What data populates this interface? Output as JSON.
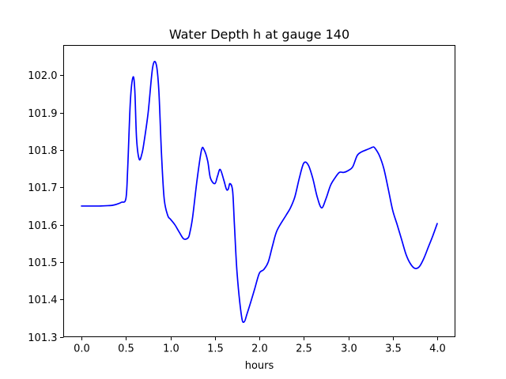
{
  "chart_data": {
    "type": "line",
    "title": "Water Depth h at gauge 140",
    "xlabel": "hours",
    "ylabel": "",
    "xlim": [
      -0.2,
      4.2
    ],
    "ylim": [
      101.3,
      102.08
    ],
    "xticks": [
      0.0,
      0.5,
      1.0,
      1.5,
      2.0,
      2.5,
      3.0,
      3.5,
      4.0
    ],
    "xtick_labels": [
      "0.0",
      "0.5",
      "1.0",
      "1.5",
      "2.0",
      "2.5",
      "3.0",
      "3.5",
      "4.0"
    ],
    "yticks": [
      101.3,
      101.4,
      101.5,
      101.6,
      101.7,
      101.8,
      101.9,
      102.0
    ],
    "ytick_labels": [
      "101.3",
      "101.4",
      "101.5",
      "101.6",
      "101.7",
      "101.8",
      "101.9",
      "102.0"
    ],
    "grid": false,
    "legend": "none",
    "series": [
      {
        "color": "#0000ff",
        "x": [
          0.0,
          0.1,
          0.2,
          0.3,
          0.35,
          0.4,
          0.45,
          0.5,
          0.52,
          0.55,
          0.58,
          0.6,
          0.62,
          0.65,
          0.68,
          0.7,
          0.75,
          0.8,
          0.84,
          0.87,
          0.9,
          0.93,
          0.97,
          1.0,
          1.05,
          1.1,
          1.15,
          1.2,
          1.22,
          1.25,
          1.3,
          1.35,
          1.38,
          1.42,
          1.45,
          1.5,
          1.53,
          1.56,
          1.6,
          1.63,
          1.65,
          1.67,
          1.7,
          1.72,
          1.75,
          1.8,
          1.83,
          1.86,
          1.9,
          1.95,
          2.0,
          2.05,
          2.1,
          2.15,
          2.2,
          2.3,
          2.35,
          2.4,
          2.45,
          2.5,
          2.55,
          2.6,
          2.65,
          2.7,
          2.75,
          2.8,
          2.85,
          2.9,
          2.95,
          3.0,
          3.05,
          3.1,
          3.15,
          3.2,
          3.25,
          3.28,
          3.3,
          3.35,
          3.4,
          3.45,
          3.5,
          3.55,
          3.6,
          3.65,
          3.7,
          3.75,
          3.8,
          3.85,
          3.9,
          3.95,
          4.0
        ],
        "y": [
          101.65,
          101.65,
          101.65,
          101.651,
          101.652,
          101.655,
          101.66,
          101.67,
          101.75,
          101.93,
          101.995,
          101.96,
          101.83,
          101.775,
          101.79,
          101.815,
          101.9,
          102.02,
          102.03,
          101.96,
          101.79,
          101.67,
          101.625,
          101.615,
          101.6,
          101.58,
          101.562,
          101.565,
          101.58,
          101.62,
          101.72,
          101.8,
          101.8,
          101.77,
          101.725,
          101.71,
          101.73,
          101.748,
          101.72,
          101.695,
          101.695,
          101.71,
          101.69,
          101.6,
          101.47,
          101.355,
          101.34,
          101.36,
          101.39,
          101.43,
          101.47,
          101.48,
          101.5,
          101.545,
          101.585,
          101.625,
          101.645,
          101.675,
          101.725,
          101.765,
          101.76,
          101.725,
          101.675,
          101.645,
          101.67,
          101.705,
          101.725,
          101.74,
          101.74,
          101.745,
          101.755,
          101.785,
          101.795,
          101.8,
          101.805,
          101.808,
          101.805,
          101.785,
          101.75,
          101.695,
          101.638,
          101.6,
          101.56,
          101.52,
          101.495,
          101.483,
          101.488,
          101.51,
          101.54,
          101.57,
          101.603
        ]
      }
    ]
  }
}
